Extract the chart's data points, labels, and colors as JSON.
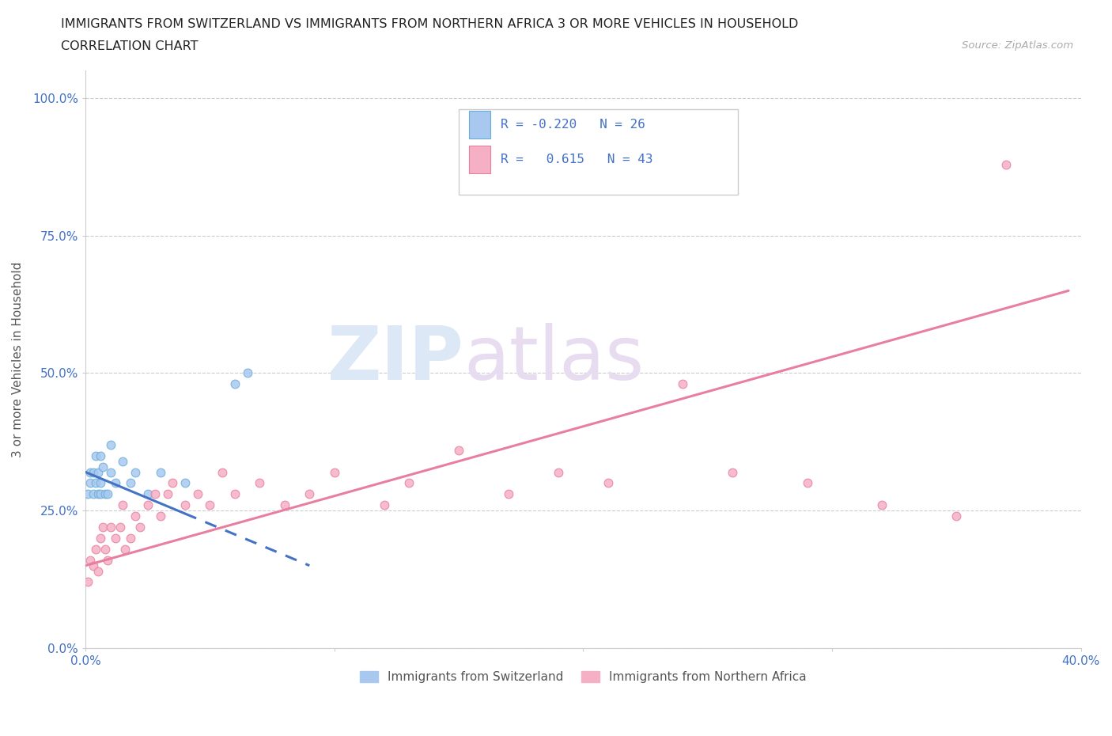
{
  "title_line1": "IMMIGRANTS FROM SWITZERLAND VS IMMIGRANTS FROM NORTHERN AFRICA 3 OR MORE VEHICLES IN HOUSEHOLD",
  "title_line2": "CORRELATION CHART",
  "source_text": "Source: ZipAtlas.com",
  "ylabel": "3 or more Vehicles in Household",
  "xlim": [
    0.0,
    0.4
  ],
  "ylim": [
    0.0,
    1.05
  ],
  "legend_label1": "Immigrants from Switzerland",
  "legend_label2": "Immigrants from Northern Africa",
  "legend_R1": "-0.220",
  "legend_N1": "26",
  "legend_R2": "0.615",
  "legend_N2": "43",
  "color_swiss": "#a8c8f0",
  "color_swiss_edge": "#6aaed6",
  "color_nafrica": "#f5b0c5",
  "color_nafrica_edge": "#e87fa0",
  "color_line_swiss": "#4472c4",
  "color_line_nafrica": "#e87fa0",
  "grid_color": "#cccccc",
  "swiss_x": [
    0.001,
    0.002,
    0.002,
    0.003,
    0.003,
    0.004,
    0.004,
    0.005,
    0.005,
    0.006,
    0.006,
    0.006,
    0.007,
    0.008,
    0.009,
    0.01,
    0.01,
    0.012,
    0.015,
    0.018,
    0.02,
    0.025,
    0.03,
    0.04,
    0.06,
    0.065
  ],
  "swiss_y": [
    0.28,
    0.3,
    0.32,
    0.28,
    0.32,
    0.3,
    0.35,
    0.28,
    0.32,
    0.28,
    0.3,
    0.35,
    0.33,
    0.28,
    0.28,
    0.32,
    0.37,
    0.3,
    0.34,
    0.3,
    0.32,
    0.28,
    0.32,
    0.3,
    0.48,
    0.5
  ],
  "nafrica_x": [
    0.001,
    0.002,
    0.003,
    0.004,
    0.005,
    0.006,
    0.007,
    0.008,
    0.009,
    0.01,
    0.012,
    0.014,
    0.015,
    0.016,
    0.018,
    0.02,
    0.022,
    0.025,
    0.028,
    0.03,
    0.033,
    0.035,
    0.04,
    0.045,
    0.05,
    0.055,
    0.06,
    0.07,
    0.08,
    0.09,
    0.1,
    0.12,
    0.13,
    0.15,
    0.17,
    0.19,
    0.21,
    0.24,
    0.26,
    0.29,
    0.32,
    0.35,
    0.37
  ],
  "nafrica_y": [
    0.12,
    0.16,
    0.15,
    0.18,
    0.14,
    0.2,
    0.22,
    0.18,
    0.16,
    0.22,
    0.2,
    0.22,
    0.26,
    0.18,
    0.2,
    0.24,
    0.22,
    0.26,
    0.28,
    0.24,
    0.28,
    0.3,
    0.26,
    0.28,
    0.26,
    0.32,
    0.28,
    0.3,
    0.26,
    0.28,
    0.32,
    0.26,
    0.3,
    0.36,
    0.28,
    0.32,
    0.3,
    0.48,
    0.32,
    0.3,
    0.26,
    0.24,
    0.88
  ],
  "swiss_line_x0": 0.0,
  "swiss_line_x1": 0.09,
  "swiss_line_y0": 0.32,
  "swiss_line_y1": 0.15,
  "nafrica_line_x0": 0.0,
  "nafrica_line_x1": 0.395,
  "nafrica_line_y0": 0.15,
  "nafrica_line_y1": 0.65
}
